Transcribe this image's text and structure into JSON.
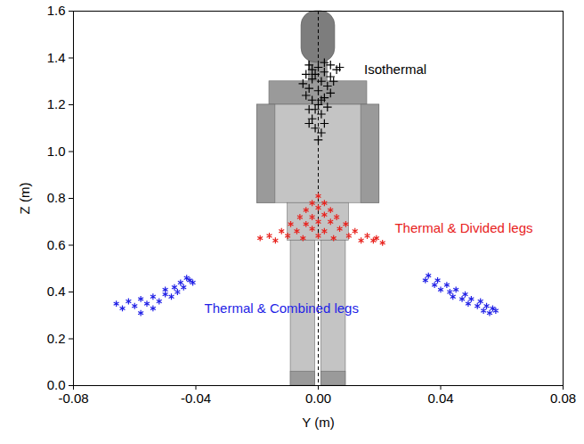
{
  "chart_data": {
    "type": "scatter",
    "x_label": "Y (m)",
    "y_label": "Z (m)",
    "xlim": [
      -0.08,
      0.08
    ],
    "xticks": [
      -0.08,
      -0.04,
      {
        "value": 0,
        "label": "0.00"
      },
      0.04,
      0.08
    ],
    "ylim": [
      0,
      1.6
    ],
    "yticks": [
      {
        "value": 0,
        "label": "0.0"
      },
      0.2,
      0.4,
      0.6,
      0.8,
      {
        "value": 1,
        "label": "1.0"
      },
      1.2,
      1.4,
      1.6
    ],
    "series": [
      {
        "name": "Isothermal",
        "color": "#000000",
        "marker": "plus",
        "x": [
          0.0,
          0.001,
          -0.001,
          0.002,
          -0.002,
          0.001,
          -0.003,
          0.003,
          0.0,
          -0.002,
          0.002,
          -0.004,
          0.004,
          0.0,
          -0.003,
          0.003,
          -0.005,
          0.001,
          -0.002,
          0.004,
          -0.004,
          0.002,
          0.006,
          -0.002,
          0.0,
          0.004,
          -0.003,
          0.007,
          0.002,
          -0.001,
          0.005,
          -0.001,
          0.001,
          -0.003
        ],
        "values": [
          1.05,
          1.08,
          1.1,
          1.12,
          1.14,
          1.16,
          1.18,
          1.19,
          1.2,
          1.22,
          1.23,
          1.24,
          1.25,
          1.26,
          1.27,
          1.28,
          1.29,
          1.3,
          1.31,
          1.32,
          1.33,
          1.34,
          1.35,
          1.35,
          1.36,
          1.37,
          1.37,
          1.36,
          1.38,
          1.33,
          1.3,
          1.18,
          1.22,
          1.12
        ]
      },
      {
        "name": "Thermal & Divided legs",
        "color": "#e8221d",
        "marker": "asterisk",
        "x": [
          0.0,
          -0.002,
          0.002,
          -0.004,
          0.004,
          0.0,
          -0.006,
          0.006,
          -0.002,
          0.002,
          -0.009,
          0.009,
          -0.004,
          0.004,
          0.0,
          -0.012,
          0.012,
          -0.007,
          0.007,
          -0.002,
          0.002,
          -0.016,
          0.016,
          -0.01,
          0.01,
          0.0,
          -0.019,
          0.019,
          -0.005,
          0.005,
          0.021,
          -0.014,
          0.014,
          0.018
        ],
        "values": [
          0.81,
          0.78,
          0.78,
          0.75,
          0.75,
          0.76,
          0.72,
          0.72,
          0.72,
          0.73,
          0.69,
          0.69,
          0.69,
          0.7,
          0.7,
          0.66,
          0.66,
          0.66,
          0.67,
          0.67,
          0.66,
          0.64,
          0.64,
          0.64,
          0.64,
          0.64,
          0.63,
          0.63,
          0.63,
          0.63,
          0.61,
          0.62,
          0.62,
          0.62
        ]
      },
      {
        "name": "Thermal & Combined legs",
        "color": "#1f1fe6",
        "marker": "asterisk",
        "x": [
          -0.066,
          -0.064,
          -0.062,
          -0.06,
          -0.058,
          -0.058,
          -0.056,
          -0.054,
          -0.054,
          -0.052,
          -0.05,
          -0.05,
          -0.048,
          -0.047,
          -0.046,
          -0.045,
          -0.044,
          -0.043,
          -0.042,
          -0.041,
          0.035,
          0.036,
          0.038,
          0.039,
          0.04,
          0.042,
          0.043,
          0.044,
          0.045,
          0.047,
          0.048,
          0.049,
          0.05,
          0.052,
          0.053,
          0.054,
          0.055,
          0.056,
          0.057,
          0.058
        ],
        "values": [
          0.35,
          0.33,
          0.36,
          0.34,
          0.31,
          0.37,
          0.35,
          0.38,
          0.33,
          0.36,
          0.39,
          0.41,
          0.38,
          0.42,
          0.4,
          0.44,
          0.42,
          0.46,
          0.45,
          0.44,
          0.45,
          0.47,
          0.43,
          0.45,
          0.41,
          0.43,
          0.4,
          0.38,
          0.41,
          0.37,
          0.39,
          0.35,
          0.37,
          0.34,
          0.36,
          0.32,
          0.34,
          0.31,
          0.33,
          0.32
        ]
      }
    ]
  }
}
